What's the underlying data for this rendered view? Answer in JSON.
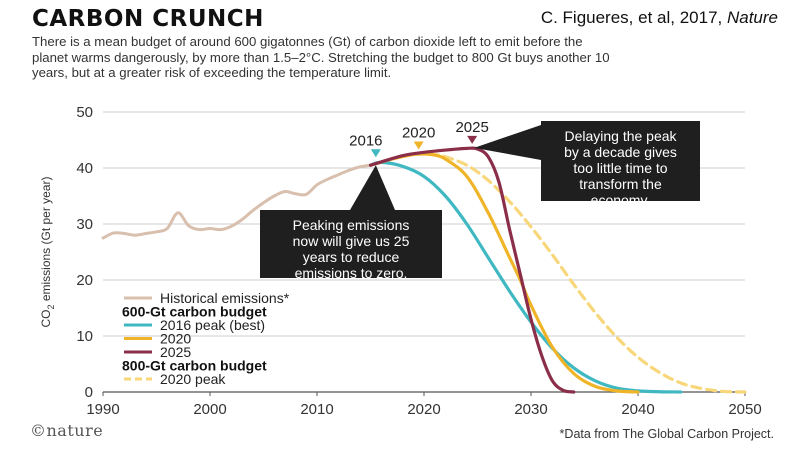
{
  "header": {
    "title": "CARBON CRUNCH",
    "citation": "C. Figueres,  et al, 2017, ",
    "citation_journal": "Nature",
    "description": "There is a mean budget of around 600 gigatonnes (Gt) of carbon dioxide left to emit before the planet warms dangerously, by more than 1.5–2°C. Stretching the budget to 800 Gt buys another 10 years, but at a greater risk of exceeding the temperature limit."
  },
  "footer": {
    "logo": "©nature",
    "note": "*Data from The Global Carbon Project."
  },
  "chart_data": {
    "type": "line",
    "ylabel": "CO2 emissions (Gt per year)",
    "xlim": [
      1990,
      2050
    ],
    "ylim": [
      0,
      50
    ],
    "xticks": [
      1990,
      2000,
      2010,
      2020,
      2030,
      2040,
      2050
    ],
    "yticks": [
      0,
      10,
      20,
      30,
      40,
      50
    ],
    "grid": true,
    "colors": {
      "historical": "#d9bfae",
      "peak2016": "#3fb8c2",
      "peak2020": "#f0b429",
      "peak2025": "#8b2e4a",
      "peak2020_800": "#f7d77a"
    },
    "series": [
      {
        "key": "historical",
        "name": "Historical emissions*",
        "x": [
          1990,
          1991,
          1992,
          1993,
          1994,
          1995,
          1996,
          1997,
          1998,
          1999,
          2000,
          2001,
          2002,
          2003,
          2004,
          2005,
          2006,
          2007,
          2008,
          2009,
          2010,
          2011,
          2012,
          2013,
          2014,
          2015
        ],
        "y": [
          27.5,
          28.4,
          28.3,
          28.0,
          28.3,
          28.6,
          29.2,
          32.0,
          29.7,
          29.0,
          29.2,
          29.0,
          29.6,
          30.8,
          32.4,
          33.8,
          35.0,
          35.8,
          35.4,
          35.3,
          37.0,
          38.0,
          38.8,
          39.6,
          40.2,
          40.5
        ]
      },
      {
        "key": "peak2016",
        "name": "2016 peak (best)",
        "x": [
          2015,
          2016,
          2018,
          2020,
          2022,
          2024,
          2026,
          2028,
          2030,
          2032,
          2034,
          2036,
          2038,
          2040,
          2042,
          2044
        ],
        "y": [
          40.5,
          41.0,
          40.3,
          38.5,
          35.0,
          30.0,
          24.0,
          18.0,
          12.5,
          7.8,
          4.3,
          2.0,
          0.7,
          0.2,
          0.05,
          0
        ]
      },
      {
        "key": "peak2020",
        "name": "2020",
        "x": [
          2015,
          2017,
          2019,
          2020,
          2021,
          2022,
          2024,
          2026,
          2028,
          2029,
          2030,
          2032,
          2034,
          2036,
          2038,
          2040
        ],
        "y": [
          40.5,
          41.6,
          42.4,
          42.5,
          42.3,
          41.6,
          38.5,
          32.0,
          24.0,
          20.0,
          15.5,
          8.0,
          3.3,
          1.0,
          0.2,
          0
        ]
      },
      {
        "key": "peak2025",
        "name": "2025",
        "x": [
          2015,
          2018,
          2020,
          2022,
          2024,
          2025,
          2026,
          2027,
          2028,
          2029,
          2030,
          2031,
          2032,
          2033,
          2034
        ],
        "y": [
          40.5,
          42.2,
          42.8,
          43.2,
          43.5,
          43.4,
          42.0,
          37.5,
          29.0,
          21.0,
          13.0,
          6.5,
          2.0,
          0.3,
          0
        ]
      },
      {
        "key": "peak2020_800",
        "name": "2020 peak",
        "dashed": true,
        "x": [
          2015,
          2017,
          2019,
          2020,
          2021,
          2022,
          2024,
          2026,
          2028,
          2030,
          2032,
          2034,
          2036,
          2038,
          2040,
          2042,
          2044,
          2046,
          2048,
          2050
        ],
        "y": [
          40.5,
          41.6,
          42.4,
          42.5,
          42.4,
          42.0,
          40.5,
          37.8,
          34.0,
          29.5,
          24.5,
          19.2,
          14.2,
          9.8,
          6.2,
          3.5,
          1.6,
          0.6,
          0.1,
          0
        ]
      }
    ],
    "peak_markers": [
      {
        "label": "2016",
        "x": 2015.5,
        "y": 41.2,
        "color": "#3fb8c2"
      },
      {
        "label": "2020",
        "x": 2019.5,
        "y": 42.6,
        "color": "#f0b429"
      },
      {
        "label": "2025",
        "x": 2024.5,
        "y": 43.6,
        "color": "#8b2e4a"
      }
    ],
    "annotations": {
      "delay": {
        "lines": [
          "Delaying the peak",
          "by a decade gives",
          "too little time to",
          "transform the",
          "economy."
        ],
        "target": {
          "x": 2024.5,
          "y": 43.6
        }
      },
      "peaking": {
        "lines": [
          "Peaking emissions",
          "now will give us 25",
          "years to reduce",
          "emissions to zero."
        ],
        "target": {
          "x": 2015.5,
          "y": 41.2
        }
      }
    },
    "legend": {
      "position": "bottom-left",
      "items": [
        {
          "type": "line",
          "label": "Historical emissions*",
          "series": "historical"
        },
        {
          "type": "heading",
          "label": "600-Gt carbon budget"
        },
        {
          "type": "line",
          "label": "2016 peak (best)",
          "series": "peak2016"
        },
        {
          "type": "line",
          "label": "2020",
          "series": "peak2020"
        },
        {
          "type": "line",
          "label": "2025",
          "series": "peak2025"
        },
        {
          "type": "heading",
          "label": "800-Gt carbon budget"
        },
        {
          "type": "line",
          "label": "2020 peak",
          "series": "peak2020_800"
        }
      ]
    }
  }
}
